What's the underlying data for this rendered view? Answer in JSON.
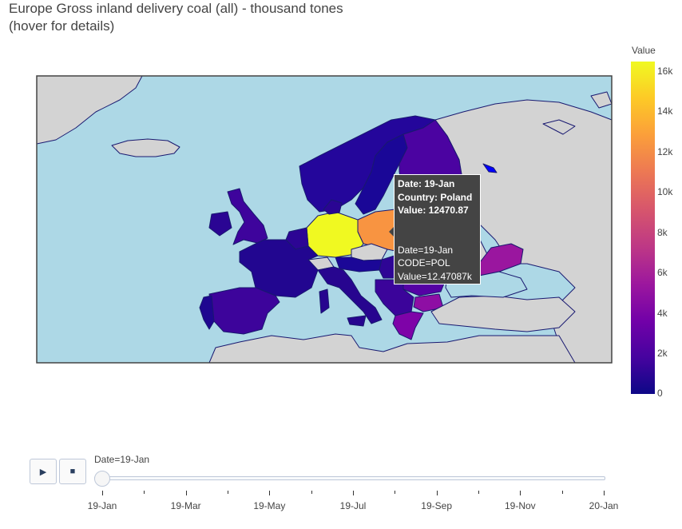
{
  "title": {
    "line1": "Europe Gross inland delivery coal (all) - thousand tones",
    "line2": "(hover for details)"
  },
  "colorbar": {
    "title": "Value",
    "ticks": [
      "16k",
      "14k",
      "12k",
      "10k",
      "8k",
      "6k",
      "4k",
      "2k",
      "0"
    ],
    "scale": [
      "#0d0887",
      "#46039f",
      "#7201a8",
      "#9c179e",
      "#bd3786",
      "#d8576b",
      "#ed7953",
      "#fb9f3a",
      "#fdca26",
      "#f0f921"
    ]
  },
  "map": {
    "ocean_color": "#add8e6",
    "land_color": "#d3d3d3",
    "border_color": "#191970",
    "frame_color": "#444444"
  },
  "tooltip": {
    "date": "Date: 19-Jan",
    "country": "Country: Poland",
    "value": "Value: 12470.87",
    "date2": "Date=19-Jan",
    "code": "CODE=POL",
    "value2": "Value=12.47087k"
  },
  "controls": {
    "play_icon": "play-icon",
    "stop_icon": "stop-icon"
  },
  "slider": {
    "current_label": "Date=19-Jan",
    "value_fraction": 0,
    "tick_labels": [
      "19-Jan",
      "19-Mar",
      "19-May",
      "19-Jul",
      "19-Sep",
      "19-Nov",
      "20-Jan"
    ]
  }
}
